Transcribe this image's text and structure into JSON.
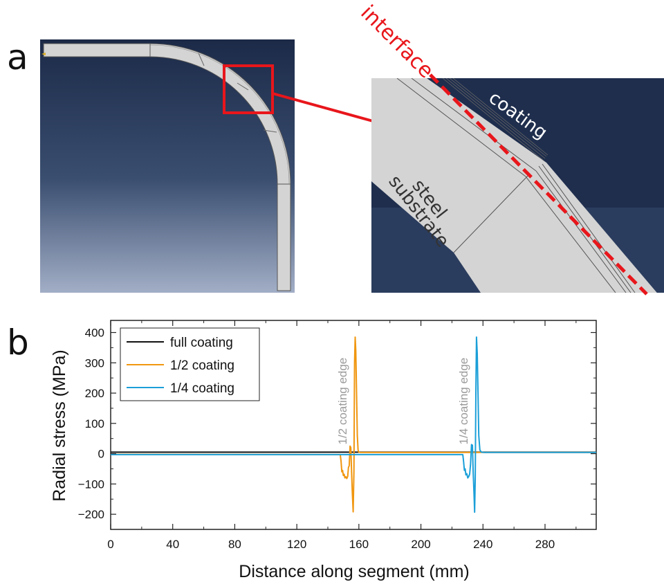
{
  "figure": {
    "panel_a_label": "a",
    "panel_b_label": "b",
    "zoom_labels": {
      "interface": "interface",
      "coating": "coating",
      "steel": "steel",
      "substrate": "substrate"
    },
    "colors": {
      "interface": "#e8161b",
      "viewport_top": "#1c2a48",
      "viewport_bottom": "#a2aec6",
      "part_fill": "#d4d4d4"
    }
  },
  "chart_data": {
    "type": "line",
    "title": "",
    "xlabel": "Distance along segment (mm)",
    "ylabel": "Radial stress (MPa)",
    "xlim": [
      0,
      313
    ],
    "ylim": [
      -250,
      440
    ],
    "xticks": [
      0,
      40,
      80,
      120,
      160,
      200,
      240,
      280
    ],
    "yticks": [
      -200,
      -100,
      0,
      100,
      200,
      300,
      400
    ],
    "grid": false,
    "legend_position": "top-left",
    "series": [
      {
        "name": "full coating",
        "color": "#111111",
        "x": [
          0,
          313
        ],
        "y": [
          5,
          5
        ]
      },
      {
        "name": "1/2 coating",
        "color": "#f0960f",
        "x": [
          0,
          148,
          148.5,
          149,
          149.5,
          150,
          150.5,
          151,
          151.6,
          152.2,
          152.8,
          153.3,
          153.8,
          154.3,
          154.8,
          155.3,
          155.8,
          156.3,
          156.8,
          157.2,
          157.6,
          158,
          158.5,
          159,
          159.5,
          160,
          161,
          163,
          313
        ],
        "y": [
          -2,
          -3,
          -25,
          -60,
          -55,
          -72,
          -68,
          -80,
          -76,
          -82,
          -75,
          -45,
          -40,
          25,
          20,
          -60,
          -130,
          -192,
          -60,
          300,
          385,
          340,
          200,
          60,
          12,
          5,
          4,
          4,
          4
        ]
      },
      {
        "name": "1/4 coating",
        "color": "#1b9fd8",
        "x": [
          0,
          227,
          227.5,
          228,
          228.5,
          229,
          229.6,
          230.2,
          230.8,
          231.4,
          232,
          232.6,
          233.2,
          233.7,
          234.2,
          234.6,
          235,
          235.4,
          235.8,
          236.3,
          236.8,
          237.3,
          238,
          239,
          241,
          313
        ],
        "y": [
          -3,
          -3,
          -25,
          -55,
          -50,
          -70,
          -66,
          -80,
          -76,
          -68,
          -35,
          30,
          28,
          -60,
          -130,
          -193,
          -80,
          200,
          385,
          330,
          200,
          60,
          12,
          5,
          4,
          4
        ]
      }
    ],
    "annotations": [
      {
        "text": "1/2 coating edge",
        "x": 152,
        "y": 30,
        "orientation": "vertical"
      },
      {
        "text": "1/4 coating edge",
        "x": 230,
        "y": 30,
        "orientation": "vertical"
      }
    ]
  }
}
